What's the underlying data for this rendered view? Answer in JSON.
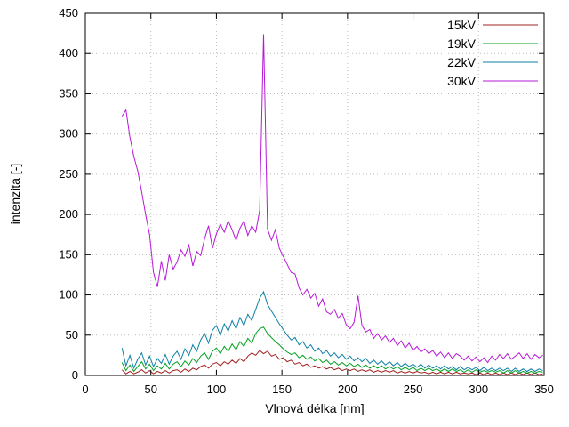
{
  "chart_data": {
    "type": "line",
    "title": "",
    "xlabel": "Vlnová délka [nm]",
    "ylabel": "intenzita [-]",
    "xlim": [
      0,
      350
    ],
    "ylim": [
      0,
      450
    ],
    "xtick_step": 50,
    "ytick_step": 50,
    "grid": true,
    "legend_position": "top-right",
    "x": [
      28,
      31,
      34,
      37,
      40,
      43,
      46,
      49,
      52,
      55,
      58,
      61,
      64,
      67,
      70,
      73,
      76,
      79,
      82,
      85,
      88,
      91,
      94,
      97,
      100,
      103,
      106,
      109,
      112,
      115,
      118,
      121,
      124,
      127,
      130,
      133,
      136,
      139,
      142,
      145,
      148,
      151,
      154,
      157,
      160,
      163,
      166,
      169,
      172,
      175,
      178,
      181,
      184,
      187,
      190,
      193,
      196,
      199,
      202,
      205,
      208,
      211,
      214,
      217,
      220,
      223,
      226,
      229,
      232,
      235,
      238,
      241,
      244,
      247,
      250,
      253,
      256,
      259,
      262,
      265,
      268,
      271,
      274,
      277,
      280,
      283,
      286,
      289,
      292,
      295,
      298,
      301,
      304,
      307,
      310,
      313,
      316,
      319,
      322,
      325,
      328,
      331,
      334,
      337,
      340,
      343,
      346,
      349
    ],
    "series": [
      {
        "name": "15kV",
        "color": "#a02020",
        "values": [
          7,
          2,
          5,
          2,
          4,
          7,
          3,
          6,
          2,
          5,
          3,
          6,
          3,
          6,
          7,
          4,
          8,
          5,
          9,
          7,
          11,
          13,
          9,
          14,
          16,
          12,
          17,
          14,
          19,
          15,
          21,
          17,
          24,
          28,
          25,
          31,
          27,
          30,
          24,
          26,
          20,
          22,
          17,
          19,
          14,
          16,
          12,
          14,
          10,
          12,
          9,
          11,
          8,
          10,
          7,
          9,
          6,
          8,
          6,
          8,
          5,
          7,
          5,
          7,
          4,
          6,
          4,
          6,
          4,
          6,
          3,
          5,
          3,
          5,
          3,
          5,
          3,
          4,
          2,
          4,
          2,
          4,
          2,
          4,
          2,
          4,
          2,
          3,
          2,
          3,
          1,
          3,
          1,
          3,
          1,
          3,
          1,
          3,
          1,
          3,
          1,
          3,
          1,
          3,
          1,
          3,
          1,
          2
        ]
      },
      {
        "name": "19kV",
        "color": "#00a020",
        "values": [
          16,
          6,
          13,
          5,
          11,
          17,
          8,
          14,
          6,
          12,
          8,
          15,
          8,
          14,
          17,
          11,
          18,
          13,
          21,
          16,
          24,
          28,
          20,
          30,
          34,
          27,
          36,
          30,
          39,
          32,
          42,
          36,
          46,
          40,
          52,
          58,
          60,
          52,
          47,
          42,
          38,
          33,
          29,
          26,
          28,
          22,
          25,
          20,
          23,
          18,
          21,
          16,
          19,
          14,
          17,
          13,
          16,
          12,
          15,
          11,
          14,
          10,
          13,
          9,
          12,
          9,
          12,
          8,
          11,
          8,
          11,
          7,
          10,
          7,
          10,
          6,
          9,
          6,
          9,
          6,
          8,
          5,
          8,
          5,
          8,
          5,
          7,
          4,
          7,
          4,
          7,
          4,
          6,
          4,
          6,
          4,
          6,
          3,
          6,
          3,
          6,
          3,
          5,
          3,
          5,
          3,
          5,
          4
        ]
      },
      {
        "name": "22kV",
        "color": "#0c7fa6",
        "values": [
          34,
          12,
          25,
          9,
          20,
          28,
          13,
          24,
          11,
          21,
          15,
          26,
          14,
          24,
          30,
          20,
          33,
          25,
          38,
          30,
          44,
          52,
          40,
          56,
          62,
          50,
          64,
          55,
          68,
          58,
          72,
          62,
          76,
          68,
          82,
          96,
          104,
          88,
          80,
          72,
          64,
          57,
          50,
          44,
          47,
          38,
          42,
          34,
          38,
          30,
          34,
          27,
          31,
          24,
          28,
          22,
          26,
          20,
          24,
          18,
          22,
          17,
          21,
          15,
          19,
          14,
          18,
          13,
          17,
          12,
          16,
          11,
          15,
          11,
          14,
          10,
          14,
          9,
          13,
          9,
          12,
          8,
          12,
          8,
          11,
          7,
          11,
          7,
          10,
          7,
          10,
          6,
          10,
          6,
          9,
          6,
          9,
          6,
          9,
          5,
          9,
          5,
          8,
          5,
          8,
          5,
          8,
          6
        ]
      },
      {
        "name": "30kV",
        "color": "#b818d8",
        "values": [
          322,
          330,
          296,
          272,
          254,
          228,
          200,
          175,
          128,
          110,
          142,
          118,
          150,
          132,
          141,
          156,
          148,
          162,
          136,
          154,
          149,
          170,
          186,
          158,
          176,
          188,
          178,
          192,
          181,
          168,
          183,
          192,
          174,
          186,
          178,
          205,
          424,
          182,
          168,
          181,
          158,
          148,
          138,
          128,
          126,
          109,
          100,
          107,
          96,
          102,
          86,
          95,
          79,
          76,
          82,
          71,
          77,
          63,
          58,
          66,
          99,
          62,
          54,
          57,
          46,
          52,
          44,
          49,
          41,
          46,
          37,
          43,
          34,
          40,
          31,
          36,
          29,
          33,
          27,
          31,
          24,
          29,
          22,
          28,
          21,
          27,
          24,
          19,
          24,
          18,
          23,
          17,
          22,
          16,
          24,
          19,
          26,
          21,
          27,
          20,
          24,
          28,
          21,
          27,
          20,
          26,
          22,
          25
        ]
      }
    ]
  }
}
